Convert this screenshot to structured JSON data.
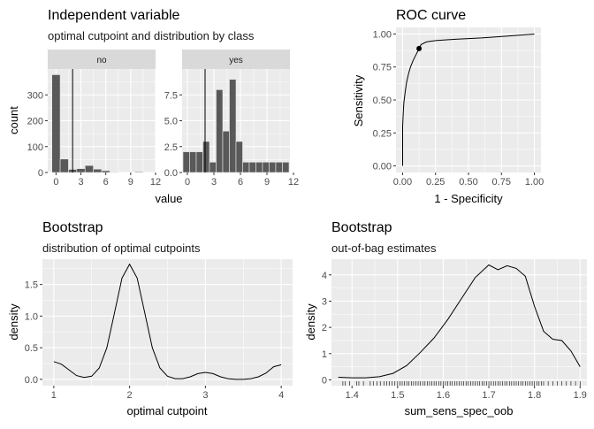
{
  "chart_data": [
    {
      "type": "bar",
      "panel": "histogram",
      "title": "Independent variable",
      "subtitle": "optimal cutpoint and distribution by class",
      "xlabel": "value",
      "ylabel": "count",
      "facets": [
        {
          "label": "no",
          "bin_width": 1,
          "bin_starts": [
            -0.5,
            0.5,
            1.5,
            2.5,
            3.5,
            4.5,
            5.5,
            6.5,
            9.5
          ],
          "values": [
            378,
            52,
            12,
            15,
            27,
            13,
            7,
            2,
            3
          ],
          "xlim": [
            -1,
            12
          ],
          "ylim": [
            0,
            400
          ],
          "xticks": [
            "0",
            "3",
            "6",
            "9",
            "12"
          ],
          "yticks": [
            "0",
            "100",
            "200",
            "300"
          ],
          "cutpoint": 2
        },
        {
          "label": "yes",
          "bin_width": 0.75,
          "bin_starts": [
            -0.5,
            0.25,
            1.0,
            1.75,
            2.5,
            3.25,
            4.0,
            4.75,
            5.5,
            6.25,
            7.0,
            7.75,
            8.5,
            9.25,
            10.0,
            10.75
          ],
          "values": [
            2,
            2,
            2,
            3,
            1,
            8,
            4,
            9,
            3,
            1,
            1,
            1,
            1,
            1,
            1,
            1
          ],
          "xlim": [
            -0.6,
            11.6
          ],
          "ylim": [
            0,
            10
          ],
          "xticks": [
            "0",
            "3",
            "6",
            "9",
            "12"
          ],
          "yticks": [
            "0.0",
            "2.5",
            "5.0",
            "7.5"
          ],
          "cutpoint": 2
        }
      ]
    },
    {
      "type": "line",
      "panel": "roc",
      "title": "ROC curve",
      "xlabel": "1 - Specificity",
      "ylabel": "Sensitivity",
      "xlim": [
        -0.05,
        1.05
      ],
      "ylim": [
        -0.05,
        1.05
      ],
      "xticks": [
        "0.00",
        "0.25",
        "0.50",
        "0.75",
        "1.00"
      ],
      "yticks": [
        "0.00",
        "0.25",
        "0.50",
        "0.75",
        "1.00"
      ],
      "x": [
        0,
        0,
        0.005,
        0.01,
        0.02,
        0.03,
        0.045,
        0.06,
        0.08,
        0.1,
        0.125,
        0.14,
        0.18,
        0.25,
        0.4,
        0.6,
        0.8,
        1.0
      ],
      "y": [
        0,
        0.3,
        0.4,
        0.48,
        0.56,
        0.63,
        0.7,
        0.75,
        0.8,
        0.84,
        0.89,
        0.92,
        0.94,
        0.95,
        0.96,
        0.97,
        0.985,
        1.0
      ],
      "optimal_point": {
        "x": 0.125,
        "y": 0.89
      }
    },
    {
      "type": "line",
      "panel": "density",
      "title": "Bootstrap",
      "subtitle": "distribution of optimal cutpoints",
      "xlabel": "optimal cutpoint",
      "ylabel": "density",
      "xlim": [
        0.85,
        4.15
      ],
      "ylim": [
        -0.1,
        1.9
      ],
      "xticks": [
        "1",
        "2",
        "3",
        "4"
      ],
      "yticks": [
        "0.0",
        "0.5",
        "1.0",
        "1.5"
      ],
      "x": [
        1.0,
        1.1,
        1.2,
        1.3,
        1.4,
        1.5,
        1.6,
        1.7,
        1.8,
        1.9,
        2.0,
        2.1,
        2.2,
        2.3,
        2.4,
        2.5,
        2.6,
        2.7,
        2.8,
        2.9,
        3.0,
        3.1,
        3.2,
        3.3,
        3.4,
        3.5,
        3.6,
        3.7,
        3.8,
        3.9,
        4.0
      ],
      "y": [
        0.28,
        0.24,
        0.15,
        0.06,
        0.03,
        0.05,
        0.18,
        0.5,
        1.05,
        1.6,
        1.82,
        1.6,
        1.05,
        0.5,
        0.18,
        0.05,
        0.01,
        0.01,
        0.04,
        0.09,
        0.11,
        0.09,
        0.04,
        0.01,
        0.0,
        0.0,
        0.01,
        0.04,
        0.1,
        0.2,
        0.23
      ]
    },
    {
      "type": "line",
      "panel": "density_rug",
      "title": "Bootstrap",
      "subtitle": "out-of-bag estimates",
      "xlabel": "sum_sens_spec_oob",
      "ylabel": "density",
      "xlim": [
        1.355,
        1.915
      ],
      "ylim": [
        -0.22,
        4.6
      ],
      "xticks": [
        "1.4",
        "1.5",
        "1.6",
        "1.7",
        "1.8",
        "1.9"
      ],
      "yticks": [
        "0",
        "1",
        "2",
        "3",
        "4"
      ],
      "x": [
        1.37,
        1.4,
        1.43,
        1.46,
        1.49,
        1.52,
        1.55,
        1.58,
        1.61,
        1.64,
        1.67,
        1.7,
        1.72,
        1.74,
        1.76,
        1.78,
        1.8,
        1.82,
        1.84,
        1.86,
        1.88,
        1.9
      ],
      "y": [
        0.1,
        0.08,
        0.08,
        0.12,
        0.25,
        0.55,
        1.05,
        1.6,
        2.3,
        3.1,
        3.9,
        4.38,
        4.2,
        4.35,
        4.25,
        3.95,
        2.8,
        1.85,
        1.55,
        1.5,
        1.1,
        0.5
      ],
      "rug": [
        1.38,
        1.385,
        1.395,
        1.41,
        1.415,
        1.425,
        1.44,
        1.447,
        1.455,
        1.462,
        1.47,
        1.476,
        1.482,
        1.488,
        1.494,
        1.5,
        1.505,
        1.51,
        1.515,
        1.52,
        1.525,
        1.53,
        1.535,
        1.54,
        1.545,
        1.55,
        1.555,
        1.56,
        1.565,
        1.57,
        1.575,
        1.58,
        1.585,
        1.59,
        1.595,
        1.6,
        1.605,
        1.61,
        1.615,
        1.62,
        1.625,
        1.63,
        1.635,
        1.64,
        1.645,
        1.65,
        1.655,
        1.66,
        1.665,
        1.67,
        1.675,
        1.68,
        1.685,
        1.69,
        1.695,
        1.7,
        1.705,
        1.71,
        1.715,
        1.72,
        1.725,
        1.73,
        1.735,
        1.74,
        1.745,
        1.75,
        1.755,
        1.76,
        1.765,
        1.77,
        1.775,
        1.78,
        1.785,
        1.79,
        1.795,
        1.8,
        1.805,
        1.81,
        1.815,
        1.82,
        1.83,
        1.84,
        1.85,
        1.86,
        1.87,
        1.88,
        1.89,
        1.9
      ]
    }
  ]
}
